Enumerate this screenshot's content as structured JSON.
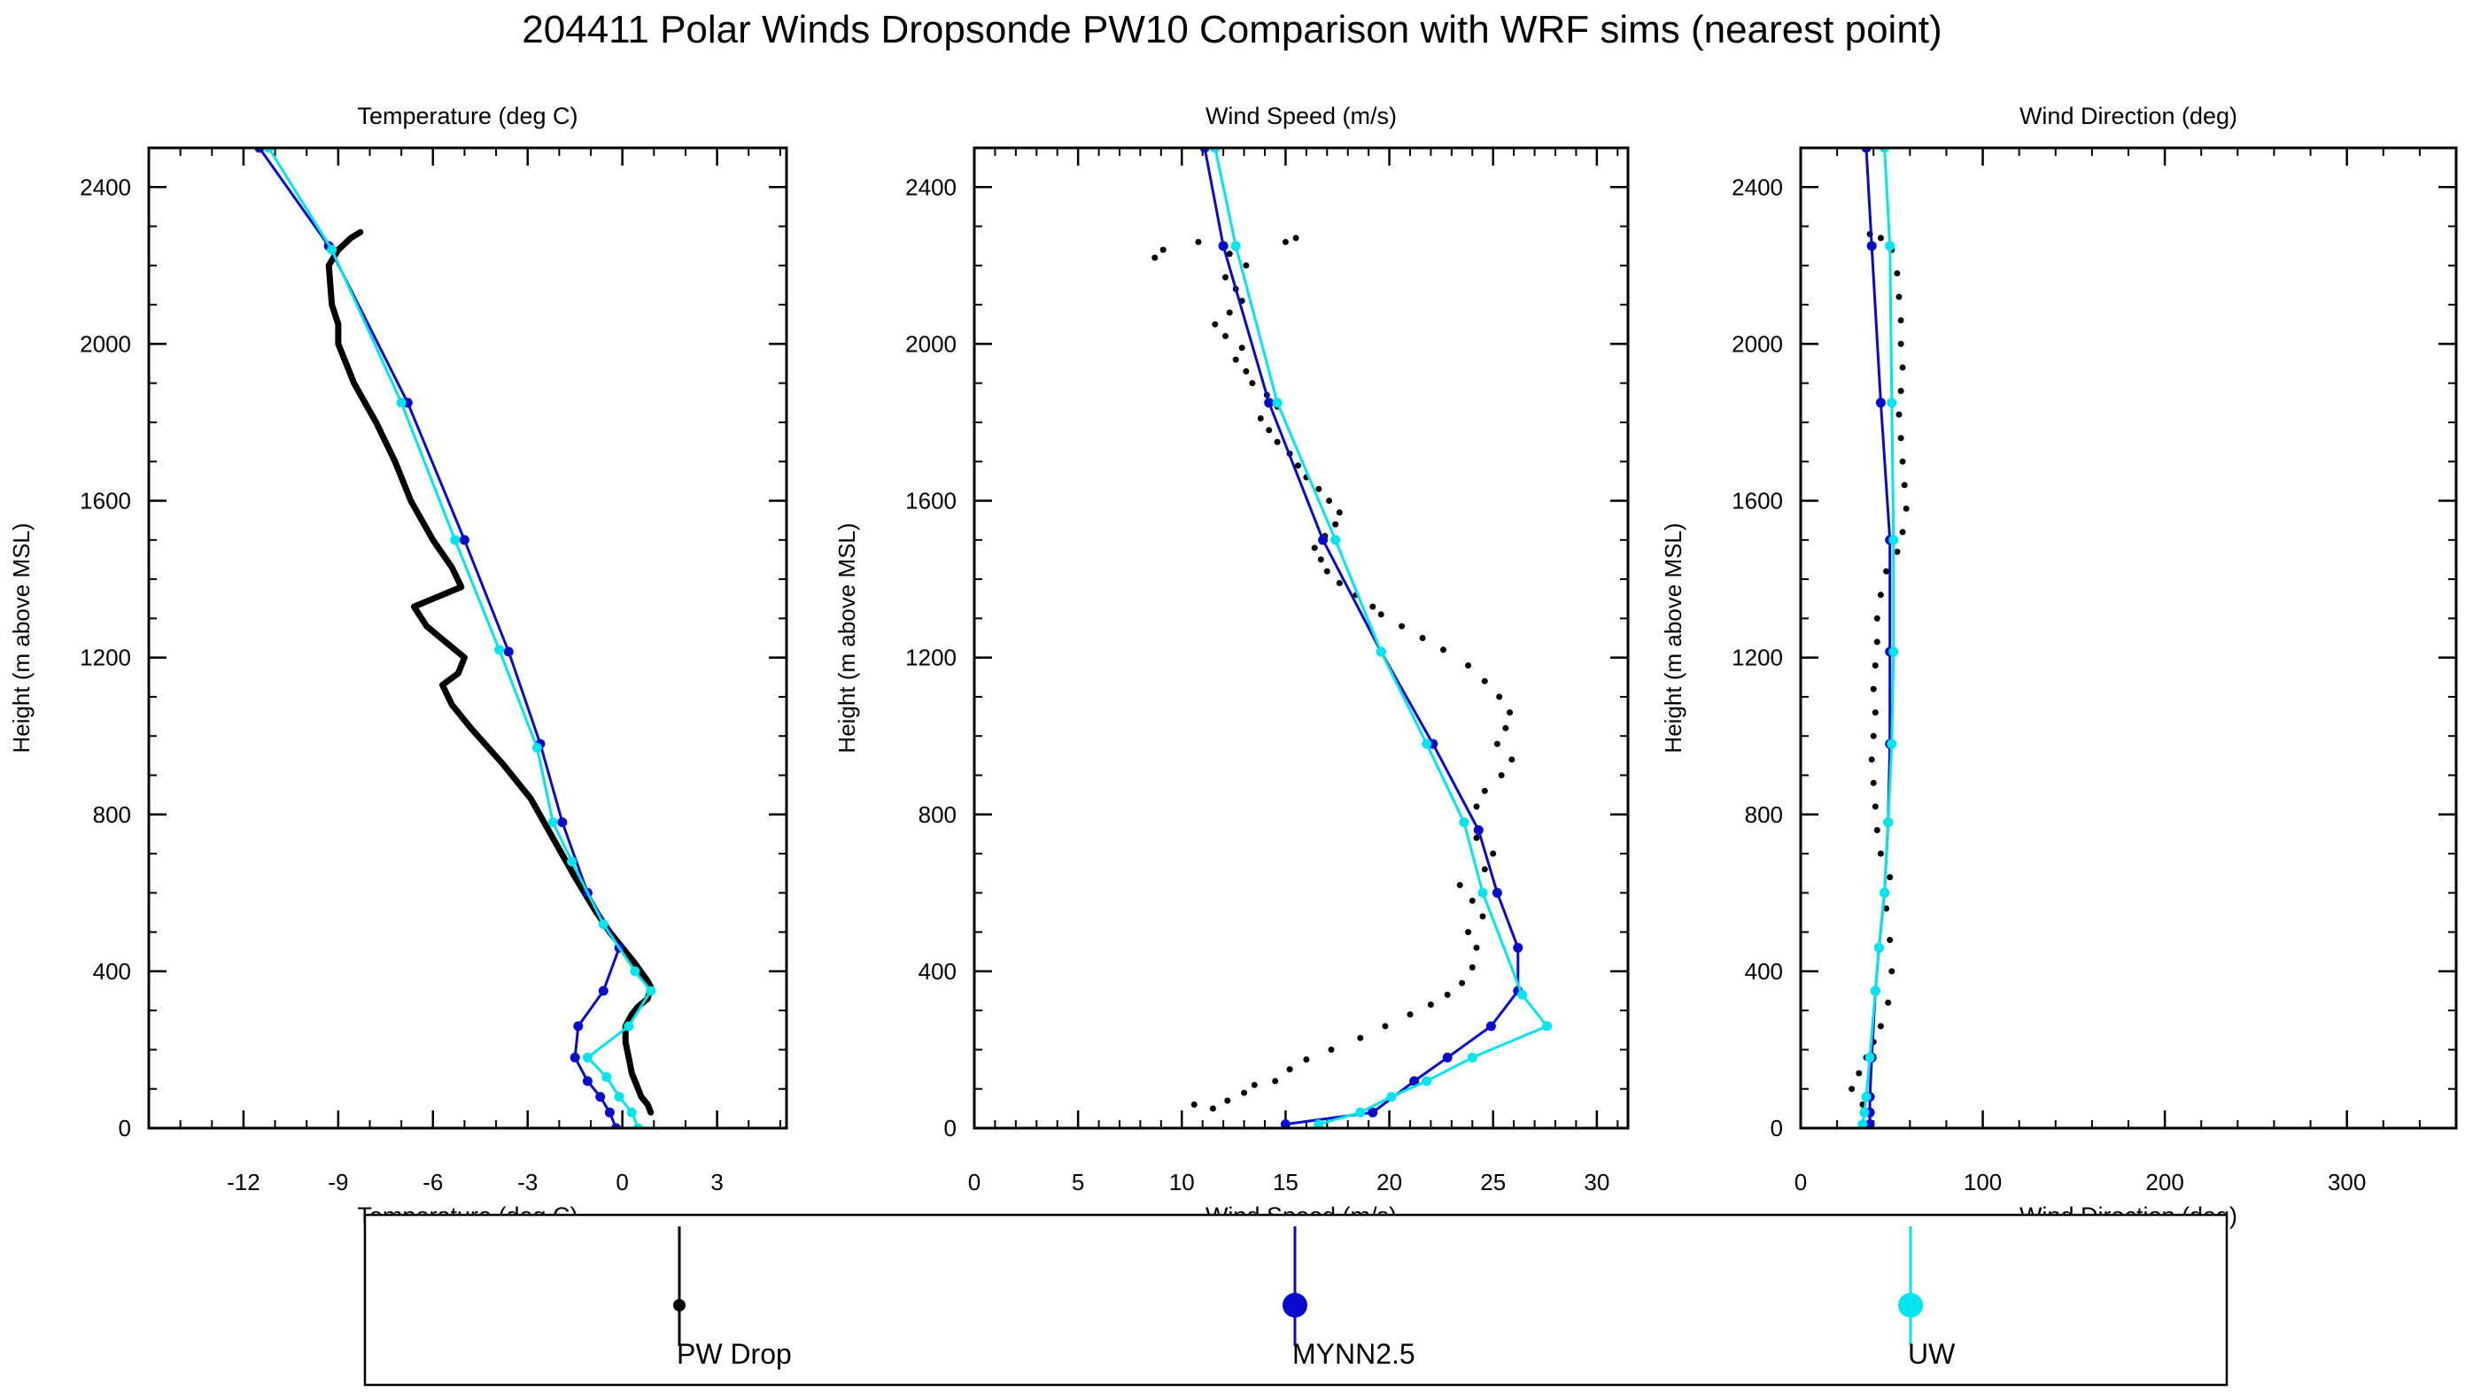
{
  "title": "204411 Polar Winds Dropsonde PW10 Comparison with WRF sims (nearest point)",
  "colors": {
    "drop": "#000000",
    "mynn": "#0a0acc",
    "uw": "#00e5ee"
  },
  "legend": [
    {
      "label": "PW Drop",
      "series": "drop"
    },
    {
      "label": "MYNN2.5",
      "series": "mynn"
    },
    {
      "label": "UW",
      "series": "uw"
    }
  ],
  "chart_data": [
    {
      "type": "line",
      "title": "Temperature (deg C)",
      "xlabel": "Temperature (deg C)",
      "ylabel": "Height (m above MSL)",
      "xlim": [
        -15,
        5.2
      ],
      "ylim": [
        0,
        2500
      ],
      "xticks": [
        -12,
        -9,
        -6,
        -3,
        0,
        3
      ],
      "yticks": [
        0,
        400,
        800,
        1200,
        1600,
        2000,
        2400
      ],
      "grid": false,
      "series": [
        {
          "name": "PW Drop",
          "key": "drop",
          "style": "thick",
          "points": [
            [
              0.9,
              40
            ],
            [
              0.8,
              60
            ],
            [
              0.6,
              80
            ],
            [
              0.5,
              100
            ],
            [
              0.3,
              140
            ],
            [
              0.2,
              180
            ],
            [
              0.1,
              220
            ],
            [
              0.1,
              260
            ],
            [
              0.3,
              290
            ],
            [
              0.5,
              310
            ],
            [
              0.8,
              330
            ],
            [
              0.9,
              360
            ],
            [
              0.8,
              375
            ],
            [
              0.4,
              420
            ],
            [
              0,
              460
            ],
            [
              -0.4,
              500
            ],
            [
              -0.9,
              560
            ],
            [
              -1.5,
              640
            ],
            [
              -2.2,
              740
            ],
            [
              -2.9,
              840
            ],
            [
              -3.8,
              930
            ],
            [
              -4.8,
              1020
            ],
            [
              -5.4,
              1080
            ],
            [
              -5.7,
              1130
            ],
            [
              -5.2,
              1160
            ],
            [
              -5.0,
              1200
            ],
            [
              -5.6,
              1240
            ],
            [
              -6.2,
              1280
            ],
            [
              -6.6,
              1330
            ],
            [
              -6.0,
              1350
            ],
            [
              -5.1,
              1380
            ],
            [
              -5.4,
              1430
            ],
            [
              -6.0,
              1500
            ],
            [
              -6.7,
              1600
            ],
            [
              -7.2,
              1700
            ],
            [
              -7.8,
              1800
            ],
            [
              -8.5,
              1900
            ],
            [
              -9.0,
              2000
            ],
            [
              -9.0,
              2050
            ],
            [
              -9.2,
              2100
            ],
            [
              -9.3,
              2200
            ],
            [
              -9.0,
              2240
            ],
            [
              -8.6,
              2270
            ],
            [
              -8.3,
              2285
            ]
          ]
        },
        {
          "name": "MYNN2.5",
          "key": "mynn",
          "style": "marker",
          "points": [
            [
              -0.2,
              0
            ],
            [
              -0.4,
              40
            ],
            [
              -0.7,
              80
            ],
            [
              -1.1,
              120
            ],
            [
              -1.5,
              180
            ],
            [
              -1.4,
              260
            ],
            [
              -0.6,
              350
            ],
            [
              -0.1,
              460
            ],
            [
              -1.1,
              600
            ],
            [
              -1.9,
              780
            ],
            [
              -2.6,
              980
            ],
            [
              -3.6,
              1215
            ],
            [
              -5.0,
              1500
            ],
            [
              -6.8,
              1850
            ],
            [
              -9.3,
              2250
            ],
            [
              -11.5,
              2500
            ]
          ]
        },
        {
          "name": "UW",
          "key": "uw",
          "style": "marker",
          "points": [
            [
              0.5,
              0
            ],
            [
              0.3,
              40
            ],
            [
              -0.1,
              80
            ],
            [
              -0.5,
              130
            ],
            [
              -1.1,
              180
            ],
            [
              0.2,
              260
            ],
            [
              0.9,
              350
            ],
            [
              0.4,
              400
            ],
            [
              -0.6,
              520
            ],
            [
              -1.6,
              680
            ],
            [
              -2.2,
              780
            ],
            [
              -2.7,
              970
            ],
            [
              -3.9,
              1220
            ],
            [
              -5.3,
              1500
            ],
            [
              -7.0,
              1850
            ],
            [
              -9.2,
              2240
            ],
            [
              -11.2,
              2500
            ]
          ]
        }
      ]
    },
    {
      "type": "line",
      "title": "Wind Speed (m/s)",
      "xlabel": "Wind Speed (m/s)",
      "ylabel": "Height (m above MSL)",
      "xlim": [
        0,
        31.5
      ],
      "ylim": [
        0,
        2500
      ],
      "xticks": [
        0,
        5,
        10,
        15,
        20,
        25,
        30
      ],
      "yticks": [
        0,
        400,
        800,
        1200,
        1600,
        2000,
        2400
      ],
      "grid": false,
      "series": [
        {
          "name": "PW Drop",
          "key": "drop",
          "style": "dots",
          "points": [
            [
              10.6,
              60
            ],
            [
              11.5,
              50
            ],
            [
              12.2,
              70
            ],
            [
              13.0,
              90
            ],
            [
              13.5,
              110
            ],
            [
              14.5,
              120
            ],
            [
              15.2,
              150
            ],
            [
              16.0,
              175
            ],
            [
              17.2,
              200
            ],
            [
              18.6,
              230
            ],
            [
              19.8,
              260
            ],
            [
              21.0,
              290
            ],
            [
              22.0,
              315
            ],
            [
              22.8,
              340
            ],
            [
              23.5,
              370
            ],
            [
              24.0,
              410
            ],
            [
              24.2,
              460
            ],
            [
              23.8,
              500
            ],
            [
              24.5,
              540
            ],
            [
              24.0,
              580
            ],
            [
              23.4,
              620
            ],
            [
              24.6,
              660
            ],
            [
              25.0,
              700
            ],
            [
              24.2,
              740
            ],
            [
              23.6,
              780
            ],
            [
              24.2,
              820
            ],
            [
              24.6,
              860
            ],
            [
              25.4,
              900
            ],
            [
              25.9,
              940
            ],
            [
              25.2,
              980
            ],
            [
              25.6,
              1020
            ],
            [
              25.8,
              1060
            ],
            [
              25.3,
              1100
            ],
            [
              24.6,
              1140
            ],
            [
              23.8,
              1180
            ],
            [
              22.6,
              1220
            ],
            [
              21.6,
              1250
            ],
            [
              20.6,
              1280
            ],
            [
              19.6,
              1310
            ],
            [
              19.2,
              1330
            ],
            [
              18.4,
              1360
            ],
            [
              17.6,
              1390
            ],
            [
              17.0,
              1420
            ],
            [
              16.7,
              1450
            ],
            [
              16.4,
              1480
            ],
            [
              16.9,
              1510
            ],
            [
              17.4,
              1540
            ],
            [
              17.6,
              1570
            ],
            [
              17.1,
              1600
            ],
            [
              16.6,
              1630
            ],
            [
              16.0,
              1660
            ],
            [
              15.6,
              1690
            ],
            [
              15.2,
              1720
            ],
            [
              14.6,
              1750
            ],
            [
              14.2,
              1780
            ],
            [
              13.8,
              1810
            ],
            [
              14.6,
              1840
            ],
            [
              14.1,
              1870
            ],
            [
              13.4,
              1900
            ],
            [
              13.1,
              1930
            ],
            [
              12.6,
              1960
            ],
            [
              12.9,
              1990
            ],
            [
              12.1,
              2020
            ],
            [
              11.6,
              2050
            ],
            [
              12.3,
              2080
            ],
            [
              12.9,
              2110
            ],
            [
              12.6,
              2140
            ],
            [
              12.1,
              2170
            ],
            [
              13.1,
              2200
            ],
            [
              12.3,
              2230
            ],
            [
              10.8,
              2260
            ],
            [
              9.1,
              2240
            ],
            [
              8.7,
              2220
            ],
            [
              15.5,
              2270
            ],
            [
              15.0,
              2260
            ]
          ]
        },
        {
          "name": "MYNN2.5",
          "key": "mynn",
          "style": "marker",
          "points": [
            [
              15.0,
              10
            ],
            [
              19.2,
              40
            ],
            [
              21.2,
              120
            ],
            [
              22.8,
              180
            ],
            [
              24.9,
              260
            ],
            [
              26.2,
              350
            ],
            [
              26.2,
              460
            ],
            [
              25.2,
              600
            ],
            [
              24.3,
              760
            ],
            [
              22.1,
              980
            ],
            [
              19.6,
              1215
            ],
            [
              16.8,
              1500
            ],
            [
              14.2,
              1850
            ],
            [
              12.0,
              2250
            ],
            [
              11.1,
              2500
            ]
          ]
        },
        {
          "name": "UW",
          "key": "uw",
          "style": "marker",
          "points": [
            [
              16.6,
              10
            ],
            [
              18.6,
              40
            ],
            [
              20.1,
              80
            ],
            [
              21.8,
              120
            ],
            [
              24.0,
              180
            ],
            [
              27.6,
              260
            ],
            [
              26.4,
              340
            ],
            [
              24.5,
              600
            ],
            [
              23.6,
              780
            ],
            [
              21.8,
              980
            ],
            [
              19.6,
              1215
            ],
            [
              17.4,
              1500
            ],
            [
              14.6,
              1850
            ],
            [
              12.6,
              2250
            ],
            [
              11.6,
              2500
            ]
          ]
        }
      ]
    },
    {
      "type": "line",
      "title": "Wind Direction (deg)",
      "xlabel": "Wind Direction (deg)",
      "ylabel": "Height (m above MSL)",
      "xlim": [
        0,
        360
      ],
      "ylim": [
        0,
        2500
      ],
      "xticks": [
        0,
        100,
        200,
        300
      ],
      "yticks": [
        0,
        400,
        800,
        1200,
        1600,
        2000,
        2400
      ],
      "grid": false,
      "series": [
        {
          "name": "PW Drop",
          "key": "drop",
          "style": "dots",
          "points": [
            [
              34,
              60
            ],
            [
              28,
              100
            ],
            [
              32,
              140
            ],
            [
              36,
              180
            ],
            [
              40,
              220
            ],
            [
              44,
              260
            ],
            [
              48,
              320
            ],
            [
              50,
              400
            ],
            [
              49,
              480
            ],
            [
              47,
              560
            ],
            [
              49,
              640
            ],
            [
              44,
              700
            ],
            [
              42,
              760
            ],
            [
              41,
              820
            ],
            [
              40,
              880
            ],
            [
              39,
              940
            ],
            [
              40,
              1000
            ],
            [
              41,
              1060
            ],
            [
              40,
              1120
            ],
            [
              41,
              1180
            ],
            [
              42,
              1240
            ],
            [
              42,
              1300
            ],
            [
              44,
              1360
            ],
            [
              47,
              1420
            ],
            [
              53,
              1470
            ],
            [
              56,
              1520
            ],
            [
              58,
              1580
            ],
            [
              57,
              1640
            ],
            [
              56,
              1700
            ],
            [
              55,
              1760
            ],
            [
              54,
              1820
            ],
            [
              55,
              1880
            ],
            [
              56,
              1940
            ],
            [
              55,
              2000
            ],
            [
              55,
              2060
            ],
            [
              54,
              2120
            ],
            [
              53,
              2180
            ],
            [
              50,
              2240
            ],
            [
              44,
              2270
            ],
            [
              38,
              2280
            ]
          ]
        },
        {
          "name": "MYNN2.5",
          "key": "mynn",
          "style": "marker",
          "points": [
            [
              38,
              10
            ],
            [
              38,
              40
            ],
            [
              38,
              80
            ],
            [
              39,
              180
            ],
            [
              41,
              350
            ],
            [
              43,
              460
            ],
            [
              46,
              600
            ],
            [
              48,
              780
            ],
            [
              49,
              980
            ],
            [
              49,
              1215
            ],
            [
              49,
              1500
            ],
            [
              44,
              1850
            ],
            [
              39,
              2250
            ],
            [
              36,
              2500
            ]
          ]
        },
        {
          "name": "UW",
          "key": "uw",
          "style": "marker",
          "points": [
            [
              34,
              10
            ],
            [
              35,
              40
            ],
            [
              36,
              80
            ],
            [
              38,
              180
            ],
            [
              41,
              350
            ],
            [
              43,
              460
            ],
            [
              46,
              600
            ],
            [
              48,
              780
            ],
            [
              50,
              980
            ],
            [
              51,
              1215
            ],
            [
              51,
              1500
            ],
            [
              50,
              1850
            ],
            [
              49,
              2250
            ],
            [
              46,
              2500
            ]
          ]
        }
      ]
    }
  ]
}
